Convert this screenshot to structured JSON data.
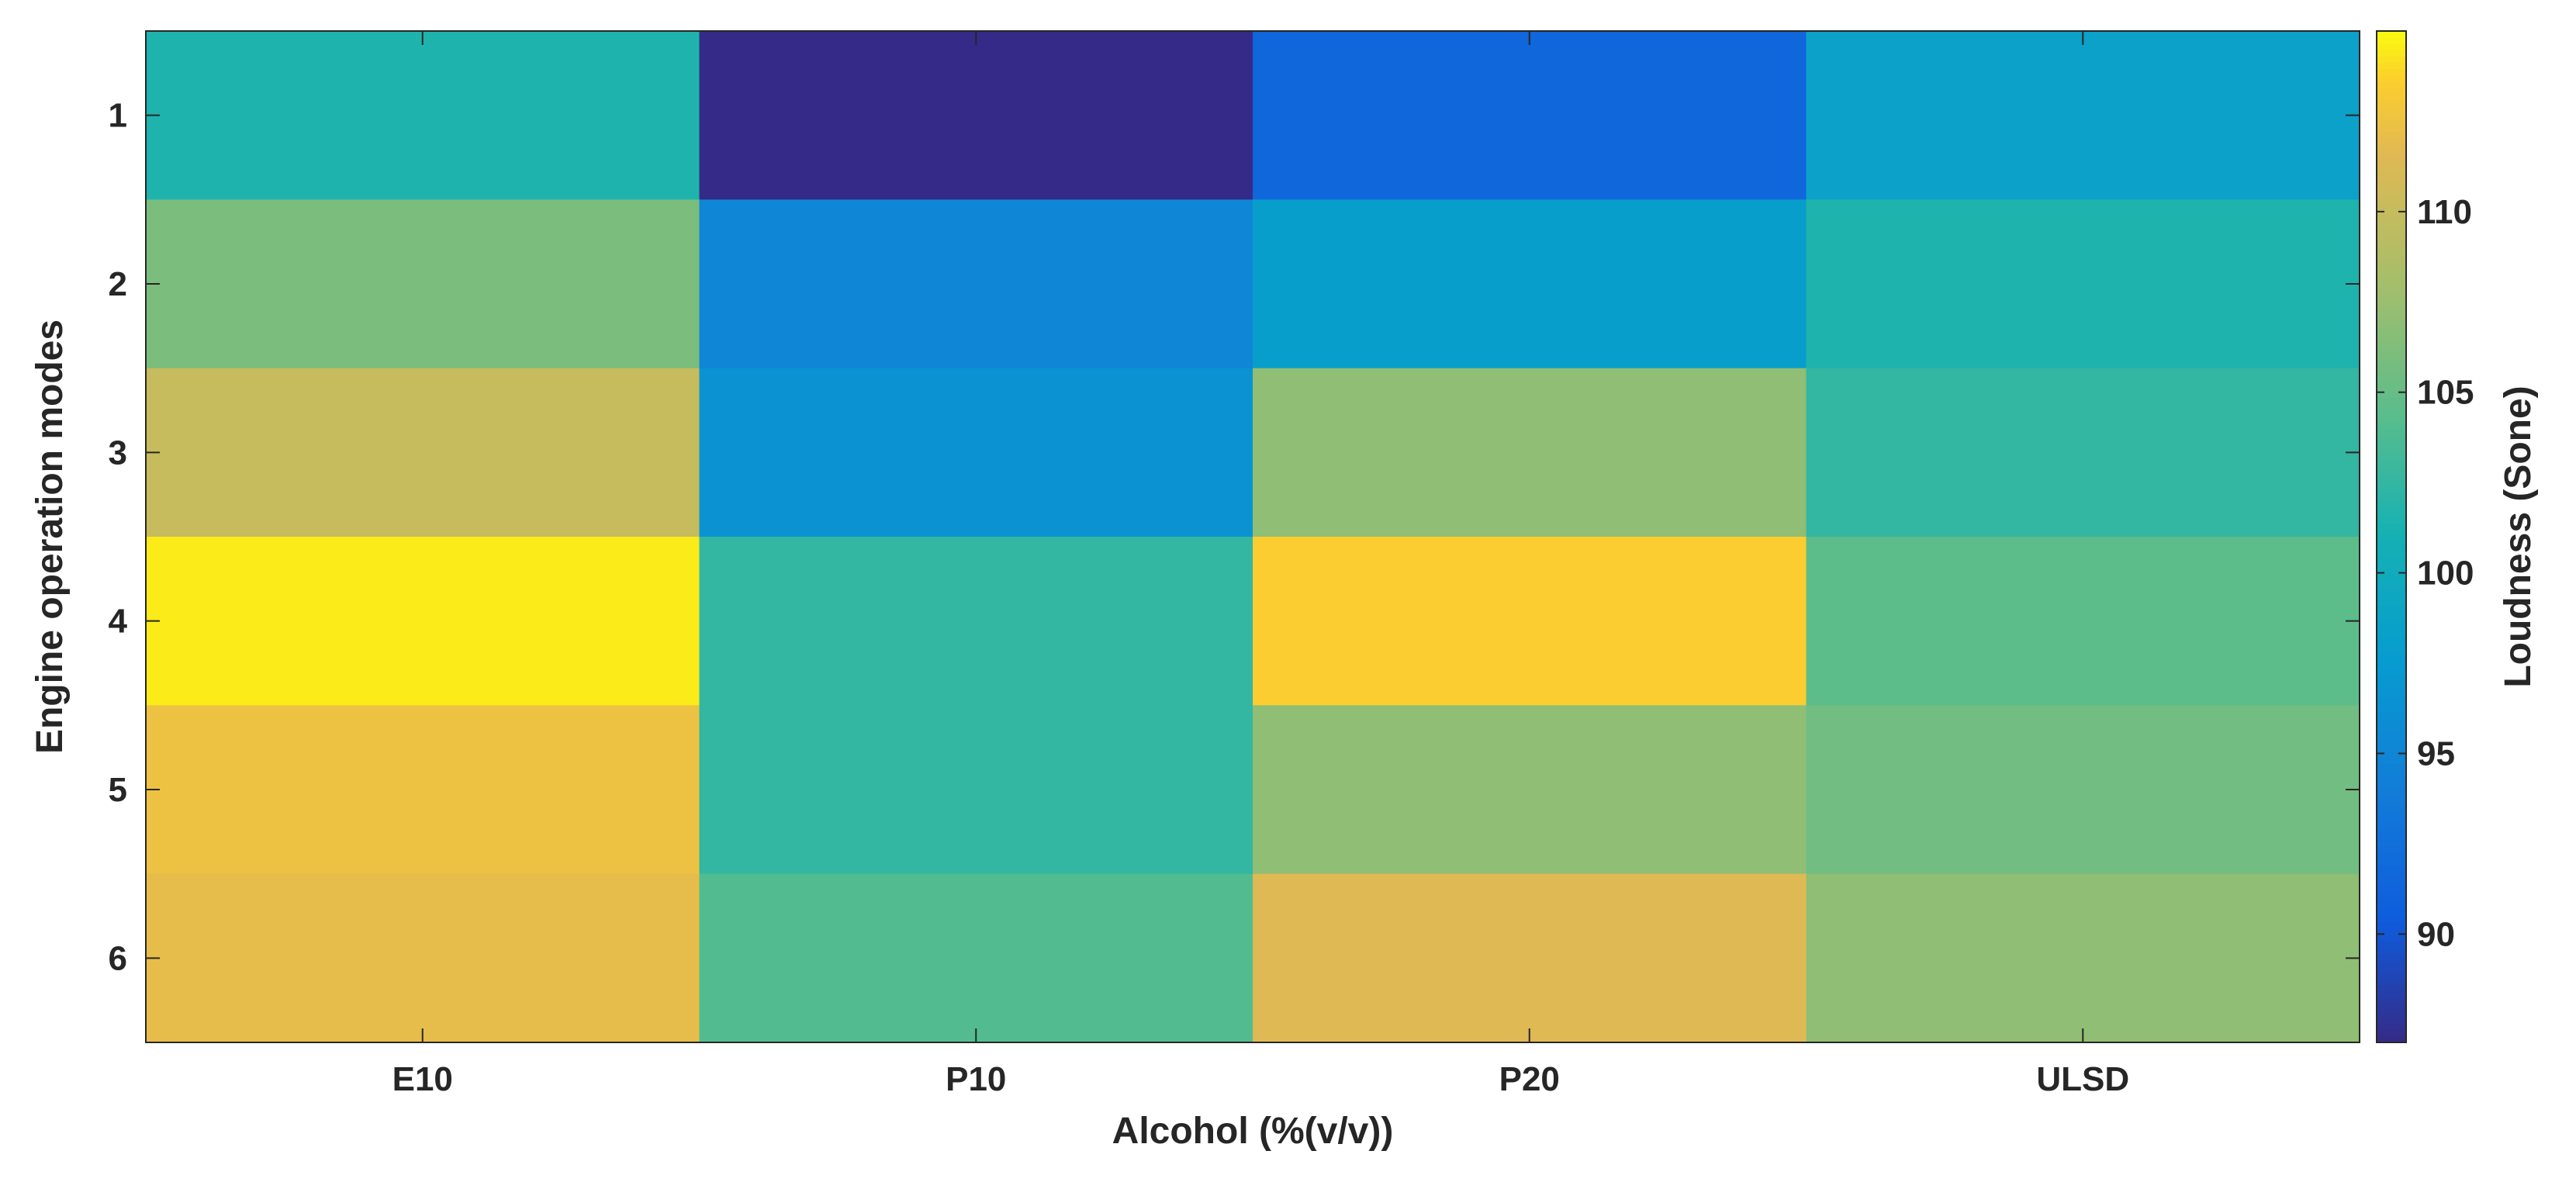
{
  "chart_data": {
    "type": "heatmap",
    "xlabel": "Alcohol (%(v/v))",
    "ylabel": "Engine operation modes",
    "colorbar_label": "Loudness (Sone)",
    "x_categories": [
      "E10",
      "P10",
      "P20",
      "ULSD"
    ],
    "y_categories": [
      "1",
      "2",
      "3",
      "4",
      "5",
      "6"
    ],
    "values": [
      [
        101.5,
        87.0,
        91.5,
        98.5
      ],
      [
        106.0,
        95.0,
        98.0,
        101.5
      ],
      [
        110.0,
        96.5,
        107.0,
        102.5
      ],
      [
        114.5,
        102.5,
        113.5,
        104.5
      ],
      [
        112.5,
        102.5,
        107.0,
        105.5
      ],
      [
        112.0,
        104.0,
        111.5,
        107.0
      ]
    ],
    "color_range": [
      87,
      115
    ],
    "colormap": "parula",
    "colorbar_ticks": [
      90,
      95,
      100,
      105,
      110
    ],
    "colorbar_tick_labels": [
      "90",
      "95",
      "100",
      "105",
      "110"
    ],
    "x_tick_labels": [
      "E10",
      "P10",
      "P20",
      "ULSD"
    ],
    "y_tick_labels": [
      "1",
      "2",
      "3",
      "4",
      "5",
      "6"
    ]
  }
}
